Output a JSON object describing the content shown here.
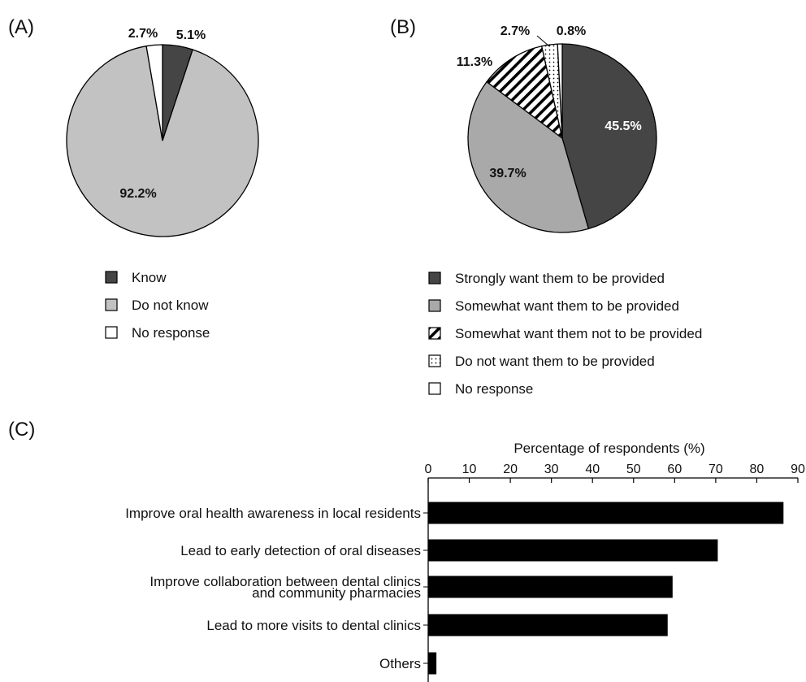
{
  "chart_data": [
    {
      "panel": "(A)",
      "type": "pie",
      "slices": [
        {
          "label": "Know",
          "value": 5.1,
          "value_label": "5.1%",
          "color": "#454545",
          "pattern": "solid"
        },
        {
          "label": "Do not know",
          "value": 92.2,
          "value_label": "92.2%",
          "color": "#c2c2c2",
          "pattern": "solid"
        },
        {
          "label": "No response",
          "value": 2.7,
          "value_label": "2.7%",
          "color": "#ffffff",
          "pattern": "solid"
        }
      ]
    },
    {
      "panel": "(B)",
      "type": "pie",
      "slices": [
        {
          "label": "Strongly want them to be provided",
          "value": 45.5,
          "value_label": "45.5%",
          "color": "#454545",
          "pattern": "solid"
        },
        {
          "label": "Somewhat want them to be provided",
          "value": 39.7,
          "value_label": "39.7%",
          "color": "#a9a9a9",
          "pattern": "solid"
        },
        {
          "label": "Somewhat want them not to be provided",
          "value": 11.3,
          "value_label": "11.3%",
          "color": "#ffffff",
          "pattern": "diagonal-stripes"
        },
        {
          "label": "Do not want them to be provided",
          "value": 2.7,
          "value_label": "2.7%",
          "color": "#ffffff",
          "pattern": "dots"
        },
        {
          "label": "No response",
          "value": 0.8,
          "value_label": "0.8%",
          "color": "#ffffff",
          "pattern": "solid"
        }
      ]
    },
    {
      "panel": "(C)",
      "type": "bar",
      "orientation": "horizontal",
      "xlabel": "Percentage of respondents (%)",
      "xlim": [
        0,
        90
      ],
      "ticks": [
        0,
        10,
        20,
        30,
        40,
        50,
        60,
        70,
        80,
        90
      ],
      "categories": [
        [
          "Improve oral health awareness in local residents"
        ],
        [
          "Lead to early detection of oral diseases"
        ],
        [
          "Improve collaboration between dental clinics",
          "and community pharmacies"
        ],
        [
          "Lead to more visits to dental clinics"
        ],
        [
          "Others"
        ]
      ],
      "values": [
        86.5,
        70.5,
        59.5,
        58.3,
        2.0
      ],
      "bar_color": "#000000"
    }
  ]
}
